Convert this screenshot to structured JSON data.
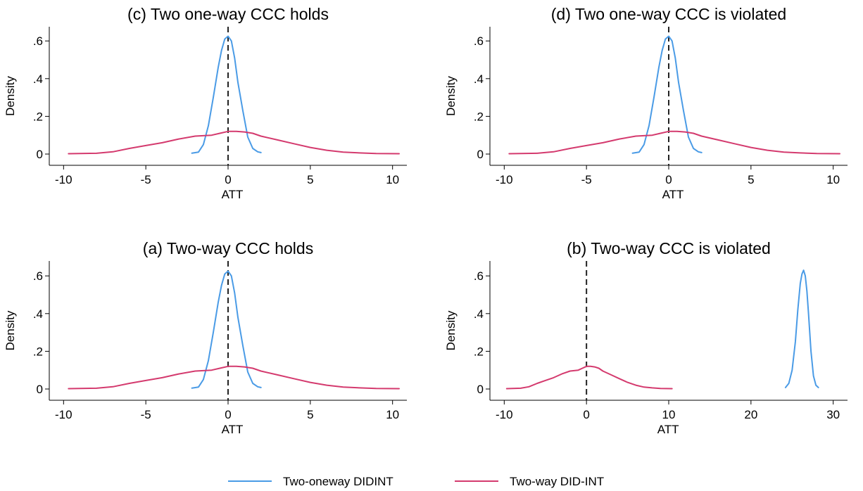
{
  "chart_data": [
    {
      "id": "c",
      "type": "line",
      "title": "(c) Two one-way CCC holds",
      "xlabel": "ATT",
      "ylabel": "Density",
      "xlim": [
        -10,
        10
      ],
      "ylim": [
        0,
        0.6
      ],
      "xticks": [
        "-10",
        "-5",
        "0",
        "5",
        "10"
      ],
      "yticks": [
        "0",
        ".2",
        ".4",
        ".6"
      ],
      "vline_x": 0,
      "series": [
        {
          "name": "Two-oneway DIDINT",
          "color": "#4a9be6",
          "x": [
            -2.2,
            -1.8,
            -1.5,
            -1.2,
            -0.9,
            -0.6,
            -0.4,
            -0.2,
            0,
            0.2,
            0.4,
            0.6,
            0.9,
            1.2,
            1.5,
            1.8,
            2.0
          ],
          "y": [
            0.005,
            0.01,
            0.05,
            0.15,
            0.3,
            0.46,
            0.55,
            0.61,
            0.625,
            0.6,
            0.51,
            0.38,
            0.23,
            0.09,
            0.03,
            0.012,
            0.008
          ]
        },
        {
          "name": "Two-way DID-INT",
          "color": "#d43a6e",
          "x": [
            -9.7,
            -8,
            -7,
            -6,
            -5,
            -4,
            -3,
            -2,
            -1,
            -0.5,
            0,
            0.5,
            1,
            1.5,
            2,
            3,
            4,
            5,
            6,
            7,
            8,
            9,
            10.4
          ],
          "y": [
            0.002,
            0.004,
            0.012,
            0.03,
            0.045,
            0.06,
            0.08,
            0.095,
            0.1,
            0.11,
            0.12,
            0.12,
            0.117,
            0.11,
            0.095,
            0.075,
            0.055,
            0.035,
            0.02,
            0.01,
            0.006,
            0.003,
            0.002
          ]
        }
      ]
    },
    {
      "id": "d",
      "type": "line",
      "title": "(d) Two one-way CCC is violated",
      "xlabel": "ATT",
      "ylabel": "Density",
      "xlim": [
        -10,
        10
      ],
      "ylim": [
        0,
        0.6
      ],
      "xticks": [
        "-10",
        "-5",
        "0",
        "5",
        "10"
      ],
      "yticks": [
        "0",
        ".2",
        ".4",
        ".6"
      ],
      "vline_x": 0,
      "series": [
        {
          "name": "Two-oneway DIDINT",
          "color": "#4a9be6",
          "x": [
            -2.2,
            -1.8,
            -1.5,
            -1.2,
            -0.9,
            -0.6,
            -0.4,
            -0.2,
            0,
            0.2,
            0.4,
            0.6,
            0.9,
            1.2,
            1.5,
            1.8,
            2.0
          ],
          "y": [
            0.005,
            0.01,
            0.05,
            0.15,
            0.3,
            0.46,
            0.55,
            0.61,
            0.625,
            0.6,
            0.51,
            0.38,
            0.23,
            0.09,
            0.03,
            0.012,
            0.008
          ]
        },
        {
          "name": "Two-way DID-INT",
          "color": "#d43a6e",
          "x": [
            -9.7,
            -8,
            -7,
            -6,
            -5,
            -4,
            -3,
            -2,
            -1,
            -0.5,
            0,
            0.5,
            1,
            1.5,
            2,
            3,
            4,
            5,
            6,
            7,
            8,
            9,
            10.4
          ],
          "y": [
            0.002,
            0.004,
            0.012,
            0.03,
            0.045,
            0.06,
            0.08,
            0.095,
            0.1,
            0.11,
            0.12,
            0.12,
            0.117,
            0.11,
            0.095,
            0.075,
            0.055,
            0.035,
            0.02,
            0.01,
            0.006,
            0.003,
            0.002
          ]
        }
      ]
    },
    {
      "id": "a",
      "type": "line",
      "title": "(a) Two-way CCC holds",
      "xlabel": "ATT",
      "ylabel": "Density",
      "xlim": [
        -10,
        10
      ],
      "ylim": [
        0,
        0.6
      ],
      "xticks": [
        "-10",
        "-5",
        "0",
        "5",
        "10"
      ],
      "yticks": [
        "0",
        ".2",
        ".4",
        ".6"
      ],
      "vline_x": 0,
      "series": [
        {
          "name": "Two-oneway DIDINT",
          "color": "#4a9be6",
          "x": [
            -2.2,
            -1.8,
            -1.5,
            -1.2,
            -0.9,
            -0.6,
            -0.4,
            -0.2,
            0,
            0.2,
            0.4,
            0.6,
            0.9,
            1.2,
            1.5,
            1.8,
            2.0
          ],
          "y": [
            0.005,
            0.01,
            0.05,
            0.15,
            0.3,
            0.46,
            0.55,
            0.61,
            0.625,
            0.6,
            0.51,
            0.38,
            0.23,
            0.09,
            0.03,
            0.012,
            0.008
          ]
        },
        {
          "name": "Two-way DID-INT",
          "color": "#d43a6e",
          "x": [
            -9.7,
            -8,
            -7,
            -6,
            -5,
            -4,
            -3,
            -2,
            -1,
            -0.5,
            0,
            0.5,
            1,
            1.5,
            2,
            3,
            4,
            5,
            6,
            7,
            8,
            9,
            10.4
          ],
          "y": [
            0.002,
            0.004,
            0.012,
            0.03,
            0.045,
            0.06,
            0.08,
            0.095,
            0.1,
            0.11,
            0.12,
            0.12,
            0.117,
            0.11,
            0.095,
            0.075,
            0.055,
            0.035,
            0.02,
            0.01,
            0.006,
            0.003,
            0.002
          ]
        }
      ]
    },
    {
      "id": "b",
      "type": "line",
      "title": "(b) Two-way CCC is violated",
      "xlabel": "ATT",
      "ylabel": "Density",
      "xlim": [
        -10,
        30
      ],
      "ylim": [
        0,
        0.6
      ],
      "xticks": [
        "-10",
        "0",
        "10",
        "20",
        "30"
      ],
      "yticks": [
        "0",
        ".2",
        ".4",
        ".6"
      ],
      "vline_x": 0,
      "series": [
        {
          "name": "Two-oneway DIDINT",
          "color": "#4a9be6",
          "x": [
            24.2,
            24.6,
            25,
            25.4,
            25.7,
            26,
            26.2,
            26.4,
            26.6,
            26.8,
            27,
            27.3,
            27.6,
            27.9,
            28.2
          ],
          "y": [
            0.008,
            0.03,
            0.1,
            0.25,
            0.42,
            0.56,
            0.61,
            0.63,
            0.6,
            0.52,
            0.4,
            0.2,
            0.07,
            0.02,
            0.008
          ]
        },
        {
          "name": "Two-way DID-INT",
          "color": "#d43a6e",
          "x": [
            -9.7,
            -8,
            -7,
            -6,
            -5,
            -4,
            -3,
            -2,
            -1,
            -0.5,
            0,
            0.5,
            1,
            1.5,
            2,
            3,
            4,
            5,
            6,
            7,
            8,
            9,
            10.4
          ],
          "y": [
            0.002,
            0.004,
            0.012,
            0.03,
            0.045,
            0.06,
            0.08,
            0.095,
            0.1,
            0.11,
            0.12,
            0.12,
            0.117,
            0.11,
            0.095,
            0.075,
            0.055,
            0.035,
            0.02,
            0.01,
            0.006,
            0.003,
            0.002
          ]
        }
      ]
    }
  ],
  "legend": {
    "items": [
      {
        "label": "Two-oneway DIDINT",
        "color": "#4a9be6"
      },
      {
        "label": "Two-way DID-INT",
        "color": "#d43a6e"
      }
    ]
  }
}
